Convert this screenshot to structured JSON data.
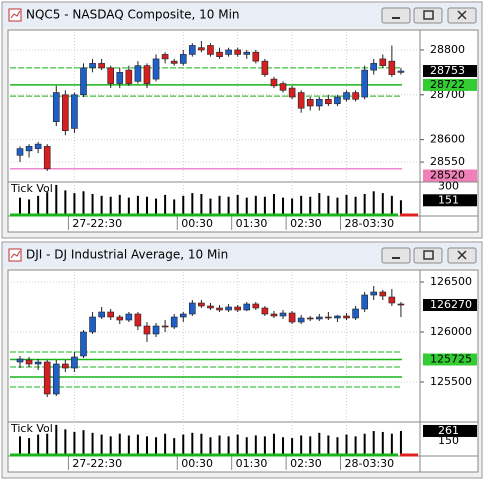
{
  "chart_data": [
    {
      "type": "candlestick",
      "title": "NQC5 - NASDAQ Composite, 10 Min",
      "categories": [
        null,
        null,
        null,
        null,
        null,
        null,
        "27-22:30",
        null,
        null,
        null,
        null,
        null,
        null,
        null,
        null,
        null,
        null,
        null,
        "00:30",
        null,
        null,
        null,
        null,
        null,
        "01:30",
        null,
        null,
        null,
        null,
        null,
        "02:30",
        null,
        null,
        null,
        null,
        null,
        "28-03:30",
        null,
        null,
        null,
        null,
        null,
        null
      ],
      "ohlc": [
        [
          28565,
          28585,
          28550,
          28580
        ],
        [
          28575,
          28590,
          28560,
          28585
        ],
        [
          28580,
          28595,
          28570,
          28590
        ],
        [
          28585,
          28590,
          28530,
          28535
        ],
        [
          28640,
          28720,
          28630,
          28705
        ],
        [
          28700,
          28710,
          28610,
          28620
        ],
        [
          28625,
          28705,
          28615,
          28700
        ],
        [
          28700,
          28770,
          28695,
          28760
        ],
        [
          28760,
          28780,
          28750,
          28770
        ],
        [
          28770,
          28780,
          28755,
          28760
        ],
        [
          28760,
          28765,
          28715,
          28725
        ],
        [
          28725,
          28760,
          28715,
          28750
        ],
        [
          28755,
          28765,
          28720,
          28725
        ],
        [
          28730,
          28775,
          28725,
          28765
        ],
        [
          28765,
          28770,
          28715,
          28725
        ],
        [
          28735,
          28790,
          28730,
          28780
        ],
        [
          28790,
          28795,
          28770,
          28780
        ],
        [
          28775,
          28780,
          28765,
          28770
        ],
        [
          28770,
          28800,
          28765,
          28790
        ],
        [
          28790,
          28815,
          28785,
          28810
        ],
        [
          28805,
          28820,
          28795,
          28800
        ],
        [
          28810,
          28815,
          28785,
          28790
        ],
        [
          28795,
          28805,
          28780,
          28785
        ],
        [
          28790,
          28805,
          28785,
          28800
        ],
        [
          28800,
          28805,
          28785,
          28790
        ],
        [
          28790,
          28800,
          28780,
          28795
        ],
        [
          28795,
          28800,
          28770,
          28775
        ],
        [
          28775,
          28780,
          28740,
          28745
        ],
        [
          28735,
          28740,
          28715,
          28720
        ],
        [
          28725,
          28730,
          28705,
          28710
        ],
        [
          28715,
          28720,
          28690,
          28695
        ],
        [
          28705,
          28710,
          28660,
          28670
        ],
        [
          28690,
          28695,
          28665,
          28675
        ],
        [
          28675,
          28695,
          28665,
          28690
        ],
        [
          28690,
          28700,
          28675,
          28680
        ],
        [
          28680,
          28700,
          28675,
          28695
        ],
        [
          28690,
          28710,
          28685,
          28705
        ],
        [
          28705,
          28710,
          28685,
          28690
        ],
        [
          28695,
          28765,
          28690,
          28755
        ],
        [
          28755,
          28780,
          28745,
          28770
        ],
        [
          28780,
          28790,
          28760,
          28765
        ],
        [
          28775,
          28810,
          28740,
          28745
        ],
        [
          28750,
          28760,
          28745,
          28753
        ]
      ],
      "up_color": "#1e5fc8",
      "down_color": "#d42020",
      "ylim": [
        28510,
        28840
      ],
      "yticks": [
        28550,
        28600,
        28700,
        28800
      ],
      "grid": true,
      "levels": [
        {
          "value": 28760,
          "color": "#19b419",
          "dash": true
        },
        {
          "value": 28722,
          "color": "#19b419",
          "dash": false
        },
        {
          "value": 28697,
          "color": "#19b419",
          "dash": true
        },
        {
          "value": 28535,
          "color": "#ee88cc",
          "dash": false
        }
      ],
      "markers": [
        {
          "value": 28753,
          "color": "#000000",
          "text_color": "#ffffff"
        },
        {
          "value": 28722,
          "color": "#33cc33",
          "text_color": "#000000"
        },
        {
          "value": 28520,
          "color": "#f080b8",
          "text_color": "#000000"
        }
      ],
      "volume": {
        "label": "Tick Vol",
        "values": [
          180,
          160,
          200,
          240,
          320,
          260,
          230,
          250,
          220,
          200,
          190,
          210,
          180,
          200,
          190,
          170,
          210,
          160,
          200,
          230,
          220,
          170,
          200,
          190,
          210,
          180,
          200,
          190,
          220,
          180,
          170,
          200,
          190,
          230,
          200,
          180,
          210,
          190,
          220,
          250,
          230,
          200,
          151
        ],
        "ylim": [
          0,
          330
        ],
        "yticks": [
          300
        ],
        "markers": [
          {
            "value": 151,
            "color": "#000000",
            "text_color": "#ffffff"
          }
        ]
      }
    },
    {
      "type": "candlestick",
      "title": "DJI - DJ Industrial Average, 10 Min",
      "categories": [
        null,
        null,
        null,
        null,
        null,
        null,
        "27-22:30",
        null,
        null,
        null,
        null,
        null,
        null,
        null,
        null,
        null,
        null,
        null,
        "00:30",
        null,
        null,
        null,
        null,
        null,
        "01:30",
        null,
        null,
        null,
        null,
        null,
        "02:30",
        null,
        null,
        null,
        null,
        null,
        "28-03:30",
        null,
        null,
        null,
        null,
        null,
        null
      ],
      "ohlc": [
        [
          125700,
          125760,
          125640,
          125730
        ],
        [
          125720,
          125750,
          125650,
          125680
        ],
        [
          125680,
          125730,
          125620,
          125700
        ],
        [
          125700,
          125720,
          125350,
          125380
        ],
        [
          125380,
          125720,
          125360,
          125680
        ],
        [
          125680,
          125720,
          125600,
          125640
        ],
        [
          125640,
          125800,
          125600,
          125750
        ],
        [
          125760,
          126020,
          125740,
          126000
        ],
        [
          126000,
          126200,
          125980,
          126150
        ],
        [
          126150,
          126250,
          126130,
          126200
        ],
        [
          126200,
          126230,
          126120,
          126150
        ],
        [
          126150,
          126170,
          126080,
          126120
        ],
        [
          126120,
          126200,
          126100,
          126180
        ],
        [
          126180,
          126200,
          126020,
          126060
        ],
        [
          126060,
          126100,
          125900,
          125980
        ],
        [
          125980,
          126090,
          125950,
          126060
        ],
        [
          126060,
          126120,
          126000,
          126050
        ],
        [
          126050,
          126180,
          126030,
          126150
        ],
        [
          126150,
          126200,
          126100,
          126180
        ],
        [
          126180,
          126320,
          126160,
          126290
        ],
        [
          126290,
          126320,
          126240,
          126260
        ],
        [
          126260,
          126290,
          126220,
          126240
        ],
        [
          126240,
          126270,
          126200,
          126220
        ],
        [
          126220,
          126280,
          126200,
          126250
        ],
        [
          126250,
          126270,
          126200,
          126220
        ],
        [
          126220,
          126300,
          126210,
          126280
        ],
        [
          126280,
          126300,
          126220,
          126240
        ],
        [
          126240,
          126260,
          126160,
          126180
        ],
        [
          126180,
          126210,
          126140,
          126160
        ],
        [
          126160,
          126220,
          126130,
          126190
        ],
        [
          126190,
          126210,
          126080,
          126100
        ],
        [
          126100,
          126170,
          126080,
          126140
        ],
        [
          126140,
          126160,
          126110,
          126130
        ],
        [
          126130,
          126180,
          126110,
          126150
        ],
        [
          126150,
          126200,
          126120,
          126140
        ],
        [
          126140,
          126170,
          126100,
          126160
        ],
        [
          126160,
          126190,
          126120,
          126140
        ],
        [
          126140,
          126260,
          126120,
          126230
        ],
        [
          126230,
          126400,
          126200,
          126370
        ],
        [
          126370,
          126460,
          126320,
          126400
        ],
        [
          126400,
          126420,
          126320,
          126360
        ],
        [
          126350,
          126430,
          126260,
          126290
        ],
        [
          126280,
          126300,
          126150,
          126270
        ]
      ],
      "up_color": "#1e5fc8",
      "down_color": "#d42020",
      "ylim": [
        125120,
        126600
      ],
      "yticks": [
        125500,
        126000,
        126500
      ],
      "grid": true,
      "levels": [
        {
          "value": 125800,
          "color": "#19b419",
          "dash": true
        },
        {
          "value": 125725,
          "color": "#19b419",
          "dash": false
        },
        {
          "value": 125650,
          "color": "#19b419",
          "dash": true
        },
        {
          "value": 125550,
          "color": "#19b419",
          "dash": false
        },
        {
          "value": 125450,
          "color": "#19b419",
          "dash": true
        }
      ],
      "markers": [
        {
          "value": 126270,
          "color": "#000000",
          "text_color": "#ffffff"
        },
        {
          "value": 125725,
          "color": "#33cc33",
          "text_color": "#000000"
        }
      ],
      "volume": {
        "label": "Tick Vol",
        "values": [
          200,
          180,
          220,
          230,
          330,
          280,
          250,
          270,
          240,
          220,
          200,
          230,
          210,
          220,
          200,
          190,
          230,
          180,
          220,
          240,
          230,
          190,
          210,
          200,
          220,
          190,
          210,
          200,
          230,
          190,
          180,
          210,
          200,
          240,
          210,
          190,
          220,
          200,
          230,
          260,
          250,
          230,
          261
        ],
        "ylim": [
          0,
          340
        ],
        "yticks": [
          150
        ],
        "markers": [
          {
            "value": 261,
            "color": "#000000",
            "text_color": "#ffffff"
          }
        ]
      }
    }
  ]
}
